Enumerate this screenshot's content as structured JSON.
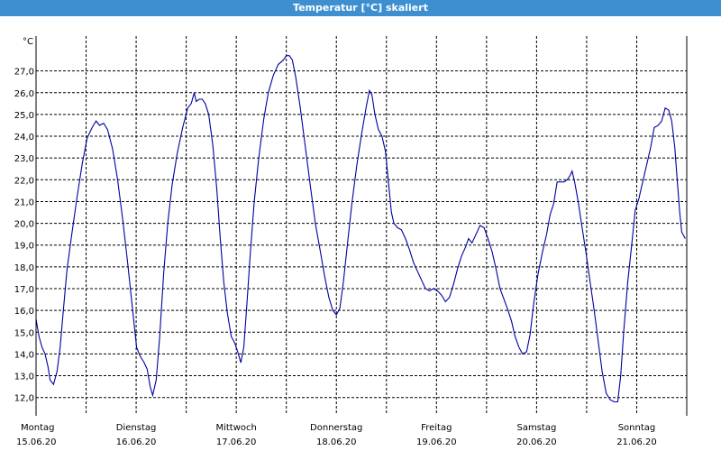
{
  "chart_data": {
    "type": "line",
    "title": "Temperatur [°C] skaliert",
    "ylabel": "°C",
    "xlabel": "",
    "ylim": [
      11.2,
      28.6
    ],
    "yticks": [
      "12,0",
      "13,0",
      "14,0",
      "15,0",
      "16,0",
      "17,0",
      "18,0",
      "19,0",
      "20,0",
      "21,0",
      "22,0",
      "23,0",
      "24,0",
      "25,0",
      "26,0",
      "27,0"
    ],
    "day_labels": [
      {
        "day": "Montag",
        "date": "15.06.20"
      },
      {
        "day": "Dienstag",
        "date": "16.06.20"
      },
      {
        "day": "Mittwoch",
        "date": "17.06.20"
      },
      {
        "day": "Donnerstag",
        "date": "18.06.20"
      },
      {
        "day": "Freitag",
        "date": "19.06.20"
      },
      {
        "day": "Samstag",
        "date": "20.06.20"
      },
      {
        "day": "Sonntag",
        "date": "21.06.20"
      }
    ],
    "grid": true,
    "series": [
      {
        "color": "#0000a0",
        "points": [
          [
            0.0,
            15.6
          ],
          [
            0.06,
            14.8
          ],
          [
            0.12,
            14.3
          ],
          [
            0.18,
            14.0
          ],
          [
            0.24,
            13.4
          ],
          [
            0.28,
            12.8
          ],
          [
            0.35,
            12.6
          ],
          [
            0.42,
            13.2
          ],
          [
            0.48,
            14.3
          ],
          [
            0.55,
            16.1
          ],
          [
            0.62,
            17.9
          ],
          [
            0.72,
            19.6
          ],
          [
            0.82,
            21.2
          ],
          [
            0.92,
            22.7
          ],
          [
            1.02,
            23.9
          ],
          [
            1.12,
            24.4
          ],
          [
            1.2,
            24.7
          ],
          [
            1.27,
            24.5
          ],
          [
            1.35,
            24.6
          ],
          [
            1.43,
            24.3
          ],
          [
            1.53,
            23.4
          ],
          [
            1.63,
            22.0
          ],
          [
            1.73,
            20.2
          ],
          [
            1.83,
            18.2
          ],
          [
            1.93,
            16.0
          ],
          [
            2.01,
            14.3
          ],
          [
            2.08,
            13.9
          ],
          [
            2.16,
            13.6
          ],
          [
            2.22,
            13.3
          ],
          [
            2.28,
            12.5
          ],
          [
            2.33,
            12.1
          ],
          [
            2.4,
            12.8
          ],
          [
            2.47,
            14.8
          ],
          [
            2.55,
            17.7
          ],
          [
            2.63,
            20.0
          ],
          [
            2.72,
            21.8
          ],
          [
            2.82,
            23.2
          ],
          [
            2.93,
            24.4
          ],
          [
            3.03,
            25.3
          ],
          [
            3.1,
            25.5
          ],
          [
            3.16,
            26.0
          ],
          [
            3.2,
            25.6
          ],
          [
            3.26,
            25.7
          ],
          [
            3.32,
            25.7
          ],
          [
            3.38,
            25.5
          ],
          [
            3.45,
            25.0
          ],
          [
            3.53,
            23.6
          ],
          [
            3.61,
            21.6
          ],
          [
            3.68,
            19.3
          ],
          [
            3.75,
            17.3
          ],
          [
            3.82,
            15.9
          ],
          [
            3.9,
            14.8
          ],
          [
            3.97,
            14.5
          ],
          [
            4.03,
            14.1
          ],
          [
            4.09,
            13.6
          ],
          [
            4.15,
            14.3
          ],
          [
            4.21,
            16.2
          ],
          [
            4.28,
            18.6
          ],
          [
            4.36,
            21.0
          ],
          [
            4.45,
            23.0
          ],
          [
            4.55,
            24.8
          ],
          [
            4.64,
            26.0
          ],
          [
            4.74,
            26.8
          ],
          [
            4.84,
            27.3
          ],
          [
            4.94,
            27.5
          ],
          [
            5.0,
            27.7
          ],
          [
            5.06,
            27.7
          ],
          [
            5.12,
            27.5
          ],
          [
            5.19,
            26.7
          ],
          [
            5.28,
            25.3
          ],
          [
            5.38,
            23.5
          ],
          [
            5.48,
            21.7
          ],
          [
            5.58,
            20.0
          ],
          [
            5.68,
            18.7
          ],
          [
            5.77,
            17.5
          ],
          [
            5.85,
            16.6
          ],
          [
            5.93,
            16.0
          ],
          [
            6.0,
            15.8
          ],
          [
            6.07,
            16.1
          ],
          [
            6.14,
            17.3
          ],
          [
            6.22,
            19.0
          ],
          [
            6.31,
            20.9
          ],
          [
            6.41,
            22.7
          ],
          [
            6.51,
            24.2
          ],
          [
            6.6,
            25.4
          ],
          [
            6.66,
            26.1
          ],
          [
            6.71,
            25.9
          ],
          [
            6.77,
            25.0
          ],
          [
            6.84,
            24.3
          ],
          [
            6.91,
            24.0
          ],
          [
            6.98,
            23.3
          ],
          [
            7.04,
            21.9
          ],
          [
            7.1,
            20.5
          ],
          [
            7.15,
            20.0
          ],
          [
            7.22,
            19.8
          ],
          [
            7.3,
            19.7
          ],
          [
            7.38,
            19.3
          ],
          [
            7.46,
            18.8
          ],
          [
            7.54,
            18.2
          ],
          [
            7.62,
            17.8
          ],
          [
            7.7,
            17.4
          ],
          [
            7.78,
            17.0
          ],
          [
            7.86,
            16.9
          ],
          [
            7.94,
            17.0
          ],
          [
            8.02,
            16.9
          ],
          [
            8.1,
            16.7
          ],
          [
            8.18,
            16.4
          ],
          [
            8.26,
            16.6
          ],
          [
            8.34,
            17.2
          ],
          [
            8.42,
            17.9
          ],
          [
            8.5,
            18.5
          ],
          [
            8.58,
            18.9
          ],
          [
            8.64,
            19.3
          ],
          [
            8.71,
            19.1
          ],
          [
            8.79,
            19.5
          ],
          [
            8.87,
            19.9
          ],
          [
            8.95,
            19.8
          ],
          [
            9.03,
            19.3
          ],
          [
            9.11,
            18.7
          ],
          [
            9.19,
            17.9
          ],
          [
            9.27,
            17.0
          ],
          [
            9.35,
            16.5
          ],
          [
            9.43,
            16.0
          ],
          [
            9.5,
            15.5
          ],
          [
            9.57,
            14.8
          ],
          [
            9.65,
            14.3
          ],
          [
            9.72,
            14.0
          ],
          [
            9.8,
            14.1
          ],
          [
            9.87,
            14.9
          ],
          [
            9.94,
            16.3
          ],
          [
            10.03,
            17.7
          ],
          [
            10.12,
            18.7
          ],
          [
            10.2,
            19.5
          ],
          [
            10.27,
            20.4
          ],
          [
            10.34,
            20.9
          ],
          [
            10.41,
            21.9
          ],
          [
            10.48,
            21.9
          ],
          [
            10.55,
            21.9
          ],
          [
            10.61,
            22.0
          ],
          [
            10.67,
            22.2
          ],
          [
            10.71,
            22.4
          ],
          [
            10.76,
            21.9
          ],
          [
            10.83,
            21.0
          ],
          [
            10.91,
            19.8
          ],
          [
            10.99,
            18.6
          ],
          [
            11.07,
            17.3
          ],
          [
            11.15,
            16.0
          ],
          [
            11.23,
            14.6
          ],
          [
            11.31,
            13.2
          ],
          [
            11.39,
            12.2
          ],
          [
            11.47,
            11.9
          ],
          [
            11.55,
            11.8
          ],
          [
            11.62,
            11.8
          ],
          [
            11.68,
            13.0
          ],
          [
            11.74,
            15.0
          ],
          [
            11.82,
            17.3
          ],
          [
            11.9,
            19.0
          ],
          [
            11.97,
            20.6
          ],
          [
            12.04,
            21.1
          ],
          [
            12.12,
            21.9
          ],
          [
            12.2,
            22.7
          ],
          [
            12.28,
            23.5
          ],
          [
            12.35,
            24.4
          ],
          [
            12.43,
            24.5
          ],
          [
            12.5,
            24.7
          ],
          [
            12.57,
            25.3
          ],
          [
            12.64,
            25.2
          ],
          [
            12.7,
            24.7
          ],
          [
            12.76,
            23.5
          ],
          [
            12.81,
            22.0
          ],
          [
            12.86,
            20.5
          ],
          [
            12.9,
            19.6
          ],
          [
            12.97,
            19.3
          ]
        ]
      }
    ]
  }
}
